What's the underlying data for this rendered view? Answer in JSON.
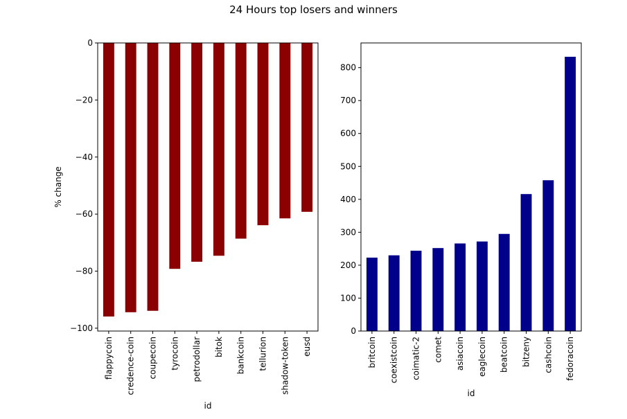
{
  "figure": {
    "suptitle": "24 Hours top losers and winners"
  },
  "chart_data": [
    {
      "type": "bar",
      "title": "",
      "xlabel": "id",
      "ylabel": "% change",
      "categories": [
        "flappycoin",
        "credence-coin",
        "coupecoin",
        "tyrocoin",
        "petrodollar",
        "bitok",
        "bankcoin",
        "tellurion",
        "shadow-token",
        "eusd"
      ],
      "values": [
        -95.9,
        -94.4,
        -93.9,
        -79.2,
        -76.7,
        -74.6,
        -68.6,
        -63.9,
        -61.5,
        -59.2
      ],
      "ylim": [
        -101,
        0
      ],
      "yticks": [
        0,
        -20,
        -40,
        -60,
        -80,
        -100
      ],
      "ytick_labels": [
        "0",
        "−20",
        "−40",
        "−60",
        "−80",
        "−100"
      ],
      "color": "#8b0000",
      "grid": false,
      "legend": false
    },
    {
      "type": "bar",
      "title": "",
      "xlabel": "id",
      "ylabel": "",
      "categories": [
        "britcoin",
        "coexistcoin",
        "coimatic-2",
        "comet",
        "asiacoin",
        "eaglecoin",
        "beatcoin",
        "bitzeny",
        "cashcoin",
        "fedoracoin"
      ],
      "values": [
        223,
        230,
        244,
        252,
        266,
        272,
        295,
        416,
        458,
        833
      ],
      "ylim": [
        0,
        875
      ],
      "yticks": [
        0,
        100,
        200,
        300,
        400,
        500,
        600,
        700,
        800
      ],
      "ytick_labels": [
        "0",
        "100",
        "200",
        "300",
        "400",
        "500",
        "600",
        "700",
        "800"
      ],
      "color": "#00008b",
      "grid": false,
      "legend": false
    }
  ]
}
